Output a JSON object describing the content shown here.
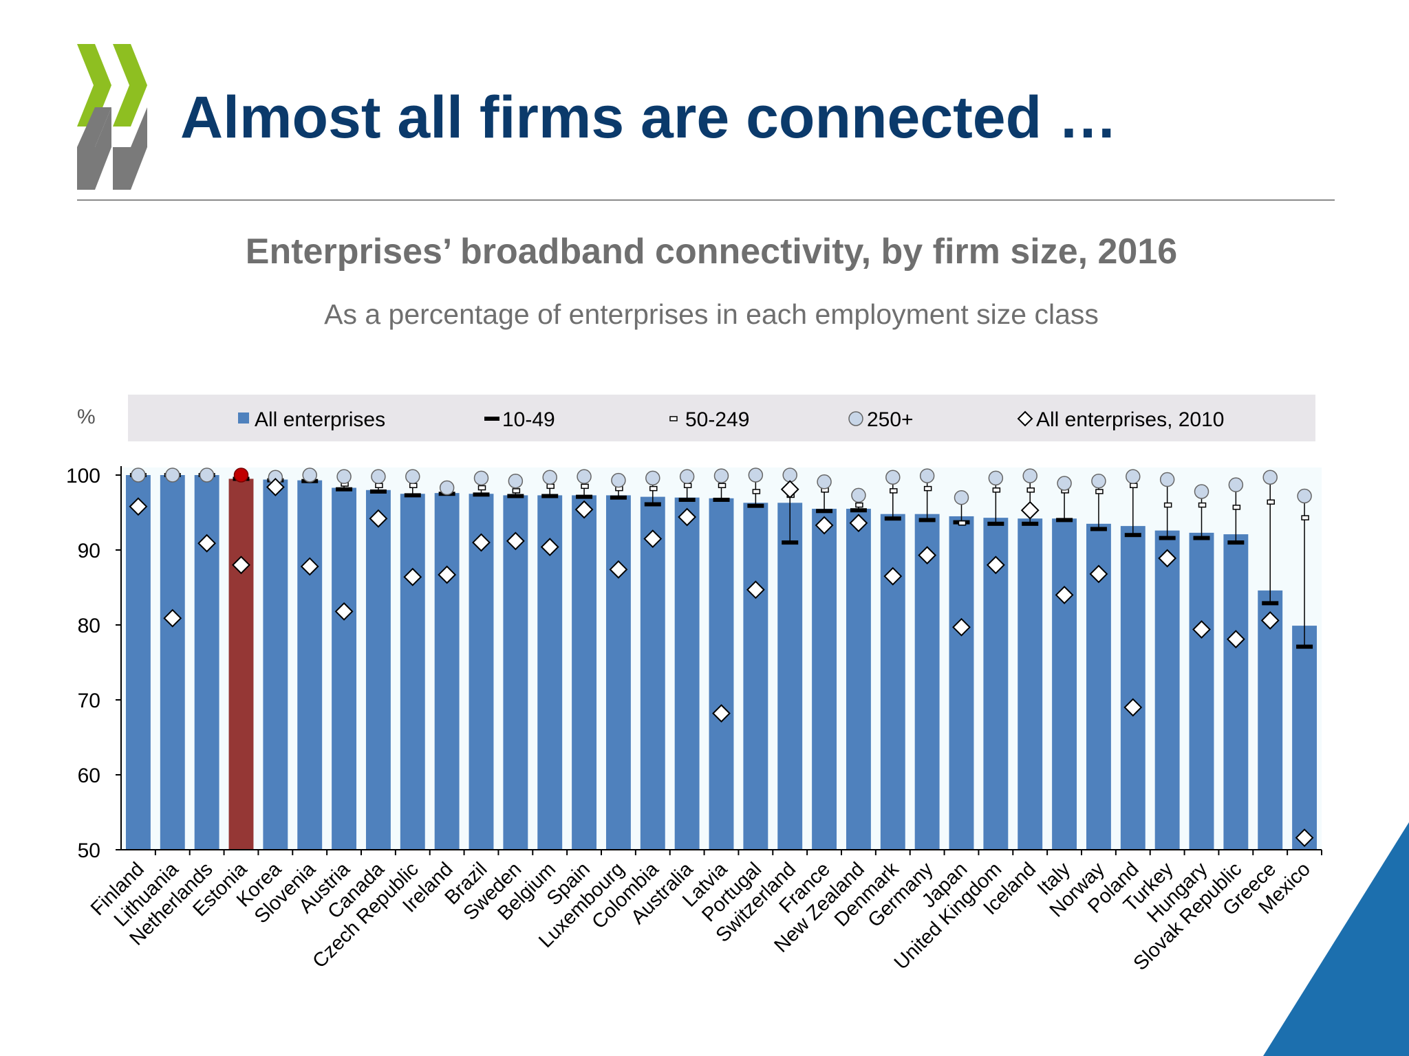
{
  "slide": {
    "title": "Almost all firms are connected …"
  },
  "colors": {
    "title": "#0b3a6b",
    "subtitle": "#6f6f6f",
    "bar": "#4f81bd",
    "highlight_bar": "#953735",
    "highlight_circle": "#c00000",
    "legend_bg": "#e8e6ea",
    "plot_bg": "#f4fbfd",
    "logo_green": "#8ebf21",
    "logo_grey": "#7a7a7a",
    "corner_blue": "#1c6fae"
  },
  "chart_data": {
    "type": "bar",
    "title": "Enterprises’ broadband connectivity, by firm size, 2016",
    "subtitle": "As a percentage of enterprises in each employment size class",
    "ylabel": "%",
    "ylim": [
      50,
      100
    ],
    "yticks": [
      "50",
      "60",
      "70",
      "80",
      "90",
      "100"
    ],
    "grid": false,
    "legend_position": "top",
    "highlight_category": "Estonia",
    "legend": [
      {
        "key": "all",
        "label": "All enterprises",
        "marker": "square"
      },
      {
        "key": "s10_49",
        "label": "10-49",
        "marker": "thick-dash"
      },
      {
        "key": "s50_249",
        "label": "50-249",
        "marker": "small-dash"
      },
      {
        "key": "s250",
        "label": "250+",
        "marker": "circle"
      },
      {
        "key": "all2010",
        "label": "All enterprises, 2010",
        "marker": "diamond"
      }
    ],
    "categories": [
      "Finland",
      "Lithuania",
      "Netherlands",
      "Estonia",
      "Korea",
      "Slovenia",
      "Austria",
      "Canada",
      "Czech Republic",
      "Ireland",
      "Brazil",
      "Sweden",
      "Belgium",
      "Spain",
      "Luxembourg",
      "Colombia",
      "Australia",
      "Latvia",
      "Portugal",
      "Switzerland",
      "France",
      "New Zealand",
      "Denmark",
      "Germany",
      "Japan",
      "United Kingdom",
      "Iceland",
      "Italy",
      "Norway",
      "Poland",
      "Turkey",
      "Hungary",
      "Slovak Republic",
      "Greece",
      "Mexico"
    ],
    "series": [
      {
        "name": "All enterprises",
        "key": "all",
        "values": [
          100.0,
          100.0,
          100.0,
          99.5,
          99.4,
          99.3,
          98.3,
          98.0,
          97.5,
          97.6,
          97.5,
          97.3,
          97.3,
          97.3,
          97.3,
          97.1,
          97.0,
          96.9,
          96.3,
          96.3,
          95.5,
          95.5,
          94.8,
          94.8,
          94.5,
          94.3,
          94.2,
          94.2,
          93.5,
          93.2,
          92.6,
          92.3,
          92.1,
          84.6,
          79.9
        ]
      },
      {
        "name": "10-49",
        "key": "s10_49",
        "values": [
          100.0,
          100.0,
          100.0,
          99.5,
          99.3,
          99.2,
          98.1,
          97.8,
          97.3,
          97.5,
          97.4,
          97.2,
          97.2,
          97.1,
          97.0,
          96.1,
          96.7,
          96.7,
          95.9,
          91.0,
          95.2,
          95.3,
          94.2,
          94.0,
          93.7,
          93.5,
          93.5,
          94.0,
          92.8,
          92.0,
          91.6,
          91.6,
          91.0,
          82.9,
          77.1
        ]
      },
      {
        "name": "50-249",
        "key": "s50_249",
        "values": [
          100.0,
          100.0,
          100.0,
          99.9,
          99.7,
          99.8,
          98.8,
          98.6,
          98.6,
          98.0,
          98.3,
          97.9,
          98.5,
          98.5,
          98.2,
          98.2,
          98.6,
          98.6,
          97.8,
          97.3,
          98.0,
          96.0,
          97.9,
          98.2,
          93.6,
          98.0,
          98.0,
          97.9,
          97.8,
          98.6,
          96.0,
          96.0,
          95.7,
          96.4,
          94.3
        ]
      },
      {
        "name": "250+",
        "key": "s250",
        "values": [
          100.0,
          100.0,
          100.0,
          100.0,
          99.7,
          100.0,
          99.8,
          99.8,
          99.8,
          98.3,
          99.6,
          99.2,
          99.7,
          99.8,
          99.3,
          99.6,
          99.8,
          99.9,
          100.0,
          100.0,
          99.1,
          97.3,
          99.7,
          99.9,
          97.0,
          99.6,
          99.9,
          98.9,
          99.2,
          99.8,
          99.4,
          97.8,
          98.7,
          99.7,
          97.2
        ]
      },
      {
        "name": "All enterprises, 2010",
        "key": "all2010",
        "values": [
          95.8,
          80.9,
          90.9,
          88.0,
          98.4,
          87.8,
          81.8,
          94.2,
          86.4,
          86.7,
          91.0,
          91.2,
          90.4,
          95.4,
          87.4,
          91.5,
          94.4,
          68.2,
          84.7,
          98.1,
          93.3,
          93.6,
          86.5,
          89.3,
          79.7,
          88.0,
          95.3,
          84.0,
          86.8,
          69.0,
          88.9,
          79.4,
          78.1,
          80.6,
          51.6
        ]
      }
    ]
  }
}
